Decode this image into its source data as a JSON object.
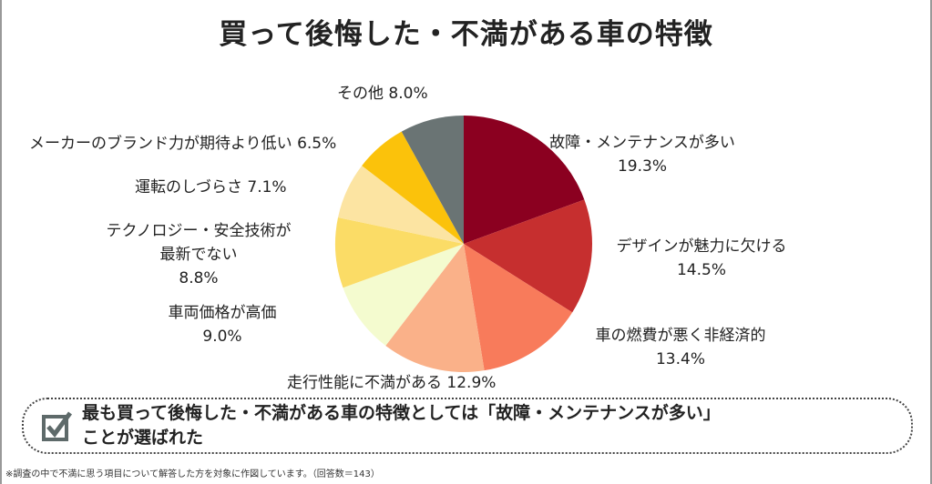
{
  "chart_data": {
    "type": "pie",
    "title": "買って後悔した・不満がある車の特徴",
    "slices": [
      {
        "label": "故障・メンテナンスが多い",
        "value": 19.3,
        "color": "#8b0020"
      },
      {
        "label": "デザインが魅力に欠ける",
        "value": 14.5,
        "color": "#c62f2f"
      },
      {
        "label": "車の燃費が悪く非経済的",
        "value": 13.4,
        "color": "#f87b5b"
      },
      {
        "label": "走行性能に不満がある",
        "value": 12.9,
        "color": "#fab189"
      },
      {
        "label": "車両価格が高価",
        "value": 9.0,
        "color": "#f4fbcf"
      },
      {
        "label": "テクノロジー・安全技術が最新でない",
        "value": 8.8,
        "color": "#fbdc66"
      },
      {
        "label": "運転のしづらさ",
        "value": 7.1,
        "color": "#fce4a2"
      },
      {
        "label": "メーカーのブランド力が期待より低い",
        "value": 6.5,
        "color": "#fbc20b"
      },
      {
        "label": "その他",
        "value": 8.0,
        "color": "#6a7474"
      }
    ],
    "value_labels": [
      "19.3%",
      "14.5%",
      "13.4%",
      "12.9%",
      "9.0%",
      "8.8%",
      "7.1%",
      "6.5%",
      "8.0%"
    ],
    "start": "12 o'clock, clockwise"
  },
  "labels": {
    "l0a": "故障・メンテナンスが多い",
    "l0b": "19.3%",
    "l1a": "デザインが魅力に欠ける",
    "l1b": "14.5%",
    "l2a": "車の燃費が悪く非経済的",
    "l2b": "13.4%",
    "l3": "走行性能に不満がある 12.9%",
    "l4a": "車両価格が高価",
    "l4b": "9.0%",
    "l5a": "テクノロジー・安全技術が",
    "l5b": "最新でない",
    "l5c": "8.8%",
    "l6": "運転のしづらさ 7.1%",
    "l7": "メーカーのブランド力が期待より低い 6.5%",
    "l8": "その他 8.0%"
  },
  "callout": {
    "line1": "最も買って後悔した・不満がある車の特徴としては「故障・メンテナンスが多い」",
    "line2": "ことが選ばれた",
    "icon": "checkbox-checked-icon"
  },
  "footnote": "※調査の中で不満に思う項目について解答した方を対象に作図しています。（回答数＝143）"
}
